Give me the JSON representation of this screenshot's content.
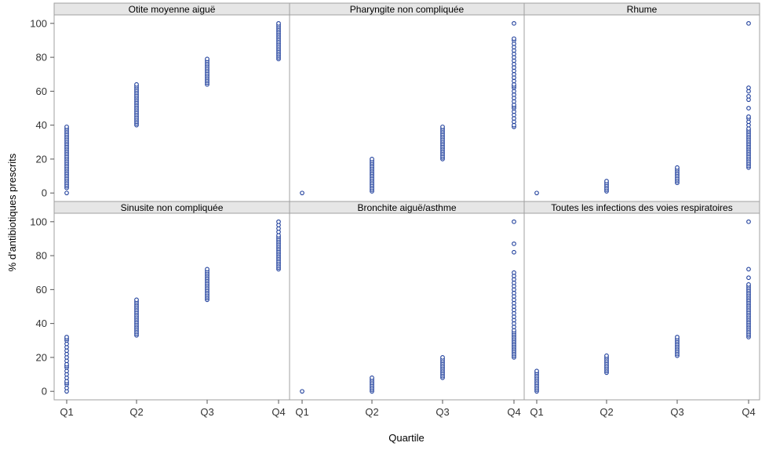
{
  "chart_data": {
    "type": "scatter",
    "layout": "panel grid",
    "xlabel": "Quartile",
    "ylabel": "% d'antibiotiques prescrits",
    "categories": [
      "Q1",
      "Q2",
      "Q3",
      "Q4"
    ],
    "ylim": [
      -5,
      105
    ],
    "yticks": [
      0,
      20,
      40,
      60,
      80,
      100
    ],
    "marker_color": "#1f3f9c",
    "panel_header_color": "#e6e6e6",
    "frame_color": "#a0a0a0",
    "panels": [
      {
        "title": "Otite moyenne aiguë",
        "points": {
          "Q1": [
            0,
            3,
            4,
            5,
            6,
            7,
            8,
            9,
            10,
            11,
            12,
            13,
            14,
            15,
            16,
            17,
            18,
            19,
            20,
            21,
            22,
            23,
            24,
            25,
            26,
            27,
            28,
            29,
            30,
            31,
            32,
            33,
            34,
            35,
            36,
            37,
            38,
            39
          ],
          "Q2": [
            40,
            41,
            42,
            43,
            44,
            45,
            46,
            47,
            48,
            49,
            50,
            51,
            52,
            53,
            54,
            55,
            56,
            57,
            58,
            59,
            60,
            61,
            62,
            63,
            64
          ],
          "Q3": [
            64,
            65,
            66,
            67,
            68,
            69,
            70,
            71,
            72,
            73,
            74,
            75,
            76,
            77,
            78,
            79
          ],
          "Q4": [
            79,
            80,
            81,
            82,
            83,
            84,
            85,
            86,
            87,
            88,
            89,
            90,
            91,
            92,
            93,
            94,
            95,
            96,
            97,
            98,
            99,
            100
          ]
        }
      },
      {
        "title": "Pharyngite non compliquée",
        "points": {
          "Q1": [
            0
          ],
          "Q2": [
            1,
            2,
            3,
            4,
            5,
            6,
            7,
            8,
            9,
            10,
            11,
            12,
            13,
            14,
            15,
            16,
            17,
            18,
            19,
            20
          ],
          "Q3": [
            20,
            21,
            22,
            23,
            24,
            25,
            26,
            27,
            28,
            29,
            30,
            31,
            32,
            33,
            34,
            35,
            36,
            37,
            38,
            39
          ],
          "Q4": [
            39,
            40,
            42,
            44,
            46,
            48,
            50,
            51,
            52,
            54,
            56,
            58,
            60,
            62,
            63,
            64,
            66,
            68,
            70,
            72,
            74,
            76,
            78,
            80,
            82,
            84,
            86,
            88,
            90,
            91,
            100
          ]
        }
      },
      {
        "title": "Rhume",
        "points": {
          "Q1": [
            0
          ],
          "Q2": [
            1,
            2,
            3,
            4,
            5,
            6,
            7
          ],
          "Q3": [
            6,
            7,
            8,
            9,
            10,
            11,
            12,
            13,
            14,
            15
          ],
          "Q4": [
            15,
            16,
            17,
            18,
            19,
            20,
            21,
            22,
            23,
            24,
            25,
            26,
            27,
            28,
            29,
            30,
            31,
            32,
            33,
            34,
            35,
            36,
            37,
            38,
            40,
            42,
            44,
            45,
            50,
            55,
            57,
            60,
            62,
            100
          ]
        }
      },
      {
        "title": "Sinusite non compliquée",
        "points": {
          "Q1": [
            0,
            2,
            4,
            5,
            6,
            8,
            10,
            12,
            14,
            15,
            16,
            18,
            20,
            22,
            24,
            26,
            28,
            30,
            31,
            32
          ],
          "Q2": [
            33,
            34,
            35,
            36,
            37,
            38,
            39,
            40,
            41,
            42,
            43,
            44,
            45,
            46,
            47,
            48,
            49,
            50,
            51,
            52,
            53,
            54
          ],
          "Q3": [
            54,
            55,
            56,
            57,
            58,
            59,
            60,
            61,
            62,
            63,
            64,
            65,
            66,
            67,
            68,
            69,
            70,
            71,
            72
          ],
          "Q4": [
            72,
            73,
            74,
            75,
            76,
            77,
            78,
            79,
            80,
            81,
            82,
            83,
            84,
            85,
            86,
            87,
            88,
            89,
            90,
            91,
            92,
            94,
            96,
            98,
            100
          ]
        }
      },
      {
        "title": "Bronchite aiguë/asthme",
        "points": {
          "Q1": [
            0
          ],
          "Q2": [
            0,
            1,
            2,
            3,
            4,
            5,
            6,
            7,
            8
          ],
          "Q3": [
            8,
            9,
            10,
            11,
            12,
            13,
            14,
            15,
            16,
            17,
            18,
            19,
            20
          ],
          "Q4": [
            20,
            21,
            22,
            23,
            24,
            25,
            26,
            27,
            28,
            29,
            30,
            31,
            32,
            33,
            34,
            35,
            36,
            38,
            40,
            42,
            44,
            46,
            48,
            50,
            52,
            54,
            56,
            58,
            60,
            62,
            64,
            66,
            68,
            70,
            82,
            87,
            100
          ]
        }
      },
      {
        "title": "Toutes les infections des voies respiratoires",
        "points": {
          "Q1": [
            0,
            1,
            2,
            3,
            4,
            5,
            6,
            7,
            8,
            9,
            10,
            11,
            12
          ],
          "Q2": [
            11,
            12,
            13,
            14,
            15,
            16,
            17,
            18,
            19,
            20,
            21
          ],
          "Q3": [
            21,
            22,
            23,
            24,
            25,
            26,
            27,
            28,
            29,
            30,
            31,
            32
          ],
          "Q4": [
            32,
            33,
            34,
            35,
            36,
            37,
            38,
            39,
            40,
            41,
            42,
            43,
            44,
            45,
            46,
            47,
            48,
            49,
            50,
            51,
            52,
            53,
            54,
            55,
            56,
            57,
            58,
            59,
            60,
            61,
            62,
            63,
            67,
            72,
            100
          ]
        }
      }
    ]
  }
}
